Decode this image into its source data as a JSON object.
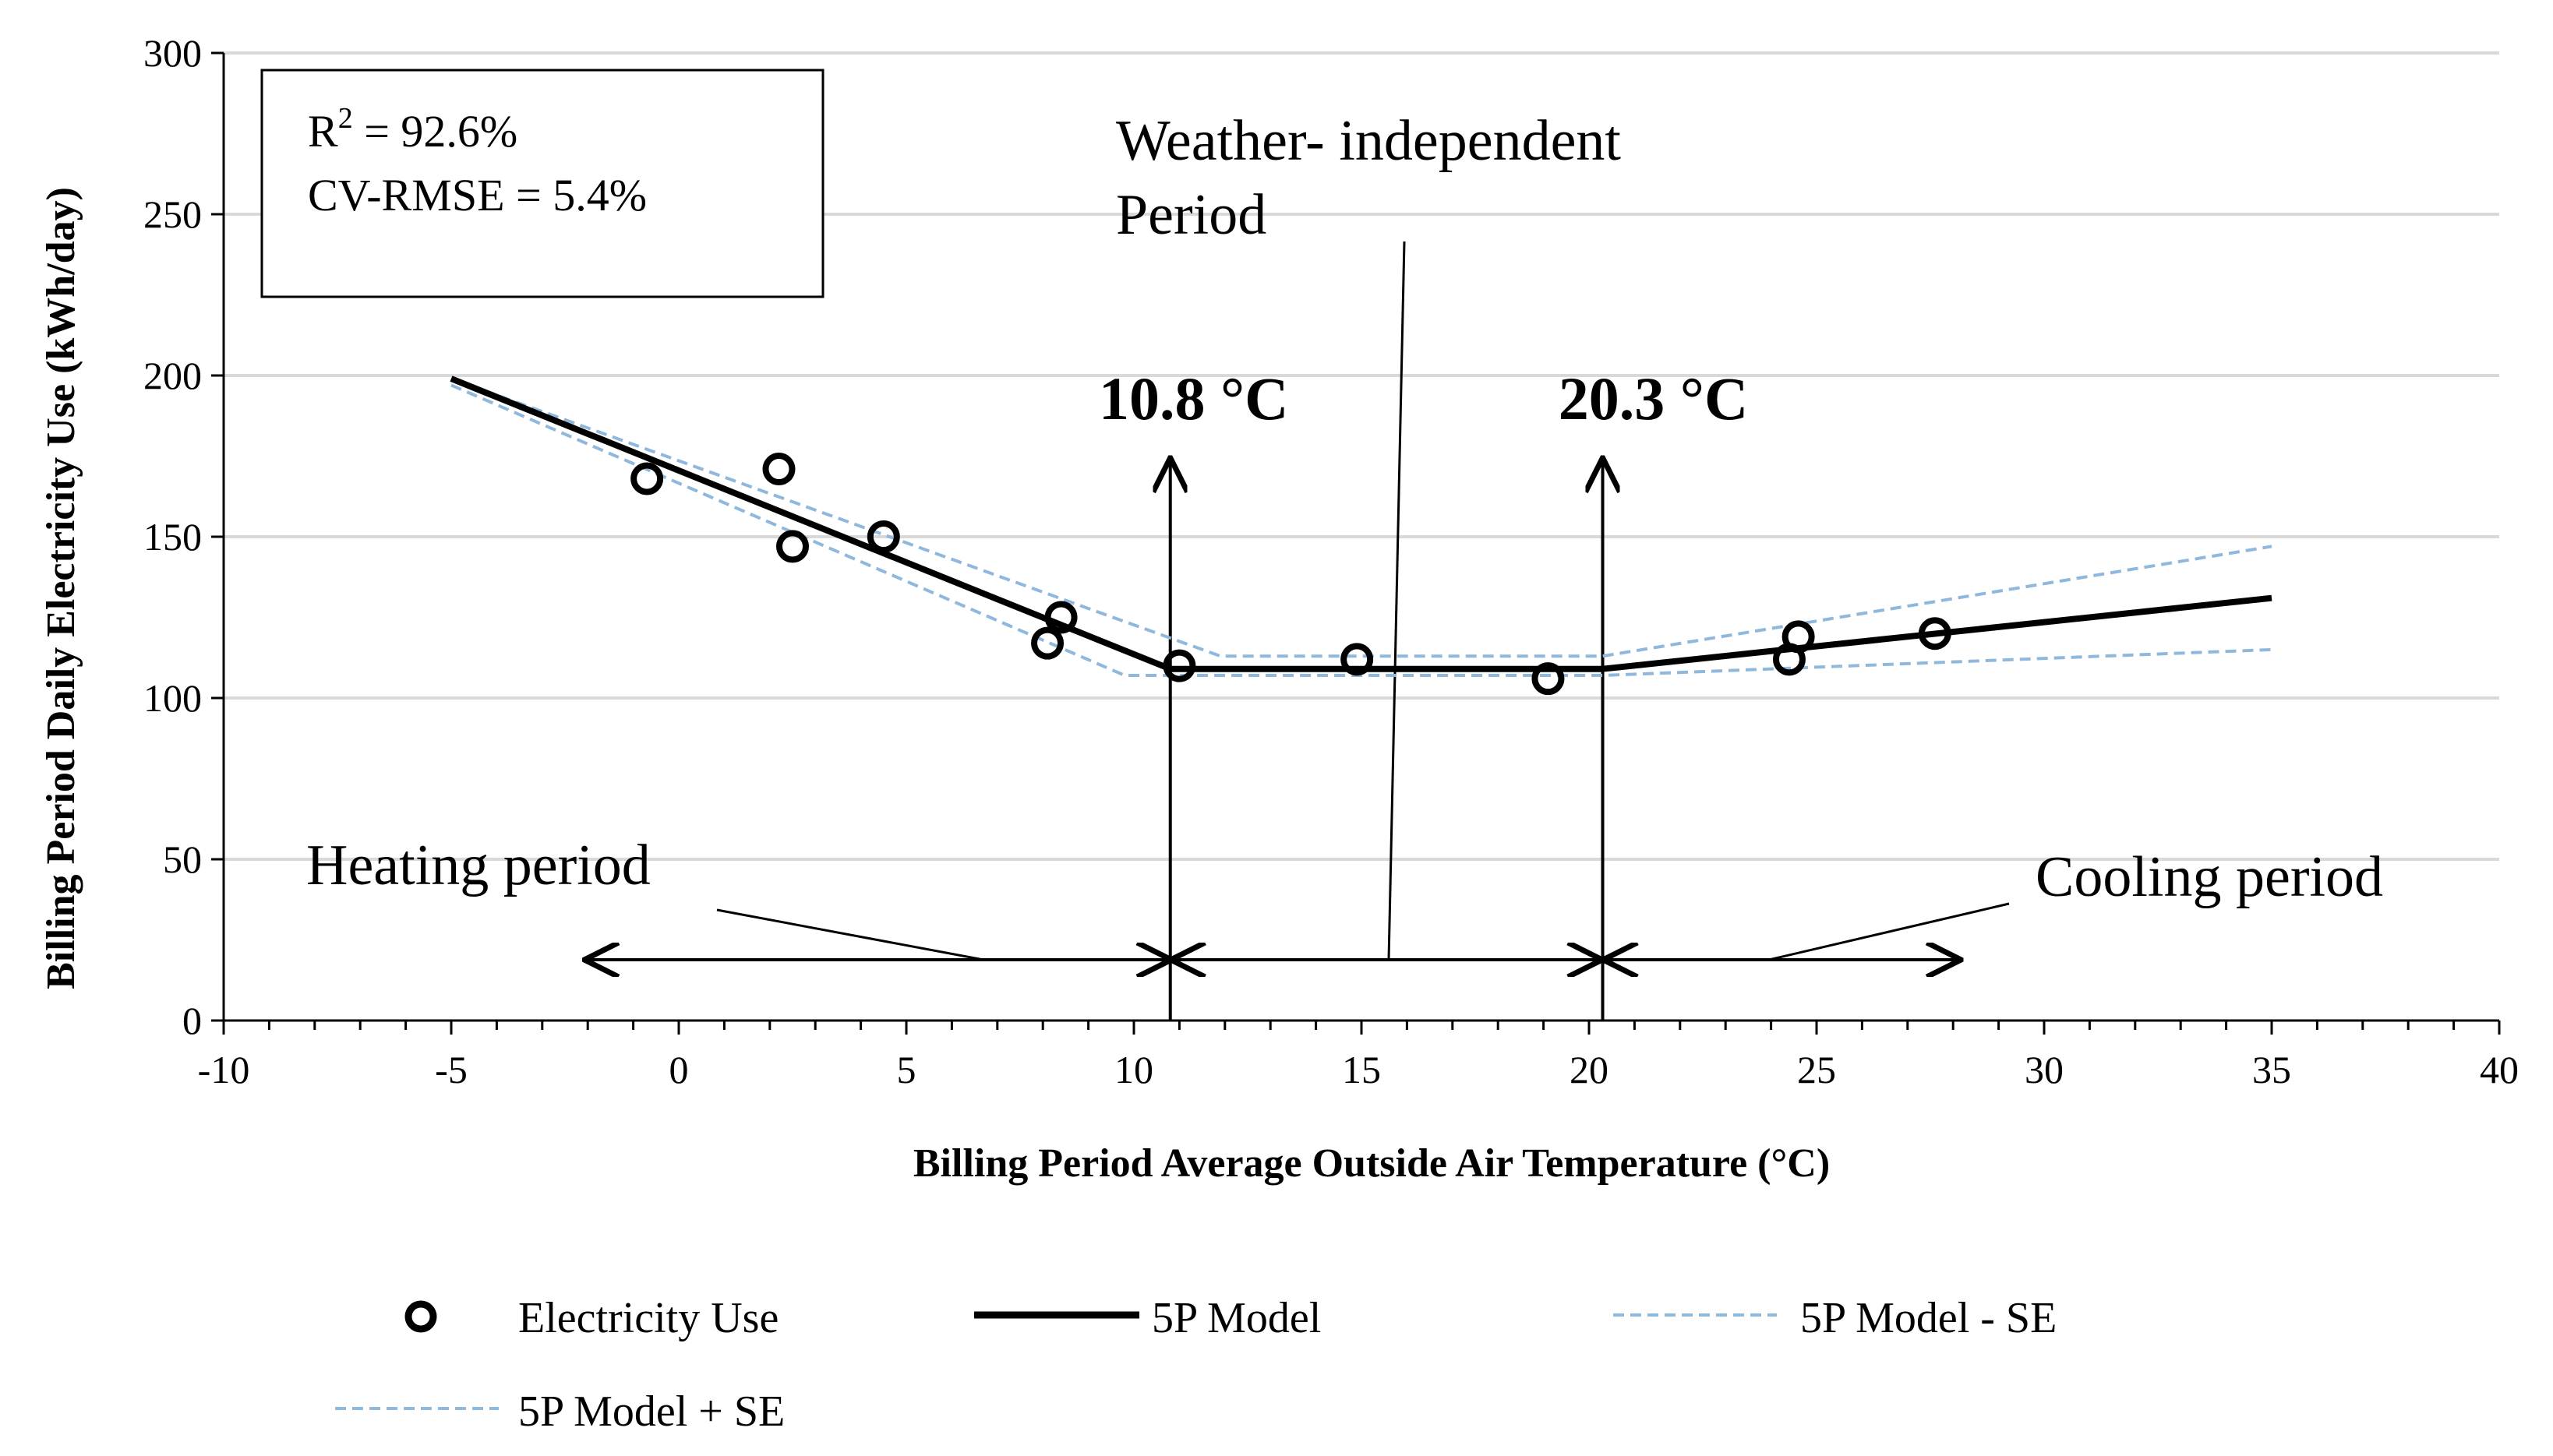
{
  "chart_data": {
    "type": "scatter",
    "xlabel": "Billing Period Average  Outside  Air Temperature  (°C)",
    "ylabel": "Billing Period Daily Electricity  Use  (kWh/day)",
    "xlim": [
      -10,
      40
    ],
    "ylim": [
      0,
      300
    ],
    "x_ticks": [
      "-10",
      "-5",
      "0",
      "5",
      "10",
      "15",
      "20",
      "25",
      "30",
      "35",
      "40"
    ],
    "y_ticks": [
      "0",
      "50",
      "100",
      "150",
      "200",
      "250",
      "300"
    ],
    "grid": "horizontal",
    "legend_position": "bottom",
    "stats": {
      "r2_prefix": "R",
      "r2_sup": "2",
      "r2_value": " = 92.6%",
      "cv_rmse": "CV-RMSE = 5.4%"
    },
    "series": [
      {
        "name": "Electricity Use",
        "kind": "markers",
        "color": "#000000",
        "points": [
          [
            -0.7,
            168
          ],
          [
            2.2,
            171
          ],
          [
            2.5,
            147
          ],
          [
            4.5,
            150
          ],
          [
            8.1,
            117
          ],
          [
            8.4,
            125
          ],
          [
            11.0,
            110
          ],
          [
            14.9,
            112
          ],
          [
            19.1,
            106
          ],
          [
            24.4,
            112
          ],
          [
            24.6,
            119
          ],
          [
            27.6,
            120
          ]
        ]
      },
      {
        "name": "5P Model",
        "kind": "solid",
        "color": "#000000",
        "points": [
          [
            -5,
            199
          ],
          [
            10.8,
            109
          ],
          [
            20.3,
            109
          ],
          [
            35,
            131
          ]
        ]
      },
      {
        "name": "5P Model - SE",
        "kind": "dashed",
        "color": "#8fb8dc",
        "points": [
          [
            -5,
            197
          ],
          [
            9.8,
            107
          ],
          [
            20.3,
            107
          ],
          [
            35,
            115
          ]
        ]
      },
      {
        "name": "5P Model + SE",
        "kind": "dashed",
        "color": "#8fb8dc",
        "points": [
          [
            -5,
            199
          ],
          [
            11.9,
            113
          ],
          [
            20.3,
            113
          ],
          [
            35,
            147
          ]
        ]
      }
    ],
    "thresholds": [
      {
        "x": 10.8,
        "label": "10.8 °C"
      },
      {
        "x": 20.3,
        "label": "20.3 °C"
      }
    ],
    "annotations": {
      "weather_line1": "Weather- independent",
      "weather_line2": "Period",
      "heating": "Heating period",
      "cooling": "Cooling period"
    }
  }
}
